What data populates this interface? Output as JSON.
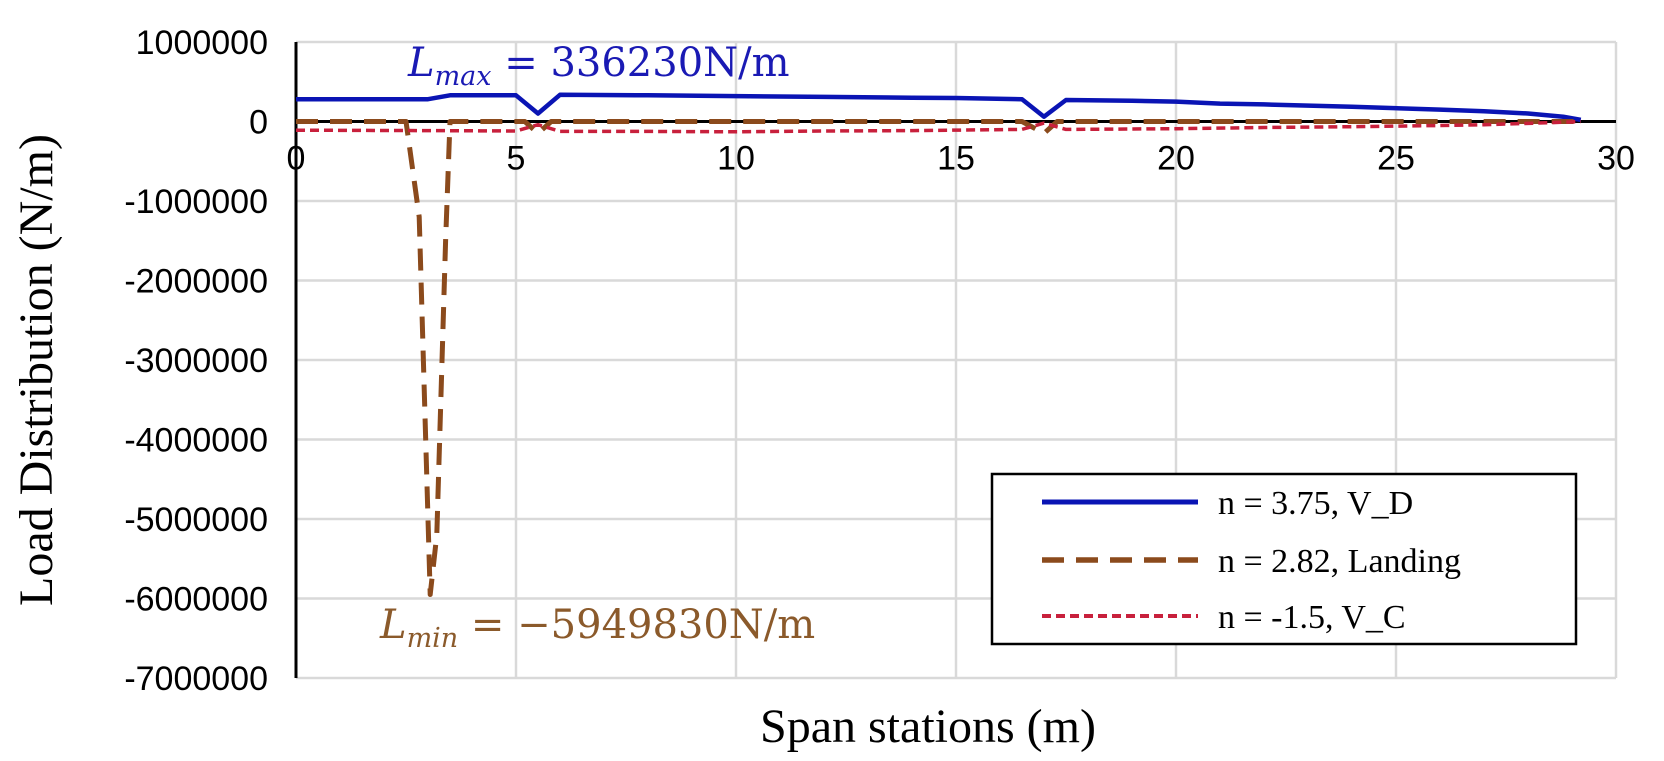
{
  "chart_data": {
    "type": "line",
    "title": "",
    "xlabel": "Span stations (m)",
    "ylabel": "Load  Distribution (N/m)",
    "xlim": [
      0,
      30
    ],
    "ylim": [
      -7000000,
      1000000
    ],
    "x_ticks": [
      "0",
      "5",
      "10",
      "15",
      "20",
      "25",
      "30"
    ],
    "y_ticks": [
      "1000000",
      "0",
      "-1000000",
      "-2000000",
      "-3000000",
      "-4000000",
      "-5000000",
      "-6000000",
      "-7000000"
    ],
    "grid": true,
    "legend_position": "bottom-right",
    "series": [
      {
        "name": "n = 3.75, V_D",
        "color": "#0a14b4",
        "style": "solid",
        "points": [
          [
            0,
            280000
          ],
          [
            3,
            280000
          ],
          [
            3.5,
            330000
          ],
          [
            5,
            330000
          ],
          [
            5.5,
            100000
          ],
          [
            6,
            336230
          ],
          [
            8,
            330000
          ],
          [
            10,
            320000
          ],
          [
            12,
            310000
          ],
          [
            14,
            300000
          ],
          [
            15,
            295000
          ],
          [
            16.5,
            280000
          ],
          [
            17,
            60000
          ],
          [
            17.5,
            270000
          ],
          [
            19,
            260000
          ],
          [
            20,
            250000
          ],
          [
            21,
            225000
          ],
          [
            22,
            215000
          ],
          [
            24,
            185000
          ],
          [
            26,
            150000
          ],
          [
            27,
            130000
          ],
          [
            28,
            100000
          ],
          [
            28.8,
            60000
          ],
          [
            29.2,
            20000
          ]
        ]
      },
      {
        "name": "n = 2.82, Landing",
        "color": "#8b4a1c",
        "style": "dashed",
        "points": [
          [
            0,
            0
          ],
          [
            2.5,
            0
          ],
          [
            2.8,
            -1200000
          ],
          [
            3.0,
            -5000000
          ],
          [
            3.05,
            -5949830
          ],
          [
            3.2,
            -5200000
          ],
          [
            3.4,
            -1500000
          ],
          [
            3.5,
            0
          ],
          [
            5.2,
            0
          ],
          [
            5.5,
            -150000
          ],
          [
            5.8,
            0
          ],
          [
            16.5,
            0
          ],
          [
            17,
            -150000
          ],
          [
            17.3,
            0
          ],
          [
            29.2,
            0
          ]
        ]
      },
      {
        "name": "n = -1.5, V_C",
        "color": "#c8203c",
        "style": "dotted",
        "points": [
          [
            0,
            -110000
          ],
          [
            3,
            -115000
          ],
          [
            5,
            -120000
          ],
          [
            5.5,
            -40000
          ],
          [
            6,
            -125000
          ],
          [
            8,
            -125000
          ],
          [
            10,
            -130000
          ],
          [
            12,
            -120000
          ],
          [
            14,
            -115000
          ],
          [
            16.5,
            -100000
          ],
          [
            17,
            -20000
          ],
          [
            17.5,
            -100000
          ],
          [
            20,
            -90000
          ],
          [
            22,
            -75000
          ],
          [
            24,
            -65000
          ],
          [
            26,
            -50000
          ],
          [
            27,
            -40000
          ],
          [
            28.5,
            -15000
          ],
          [
            29.2,
            0
          ]
        ]
      }
    ],
    "annotations": [
      {
        "main": "L",
        "sub": "max",
        "rest": " = 336230N/m",
        "color": "#1a1ab4"
      },
      {
        "main": "L",
        "sub": "min",
        "rest": " = −5949830N/m",
        "color": "#8b5a2b"
      }
    ]
  }
}
